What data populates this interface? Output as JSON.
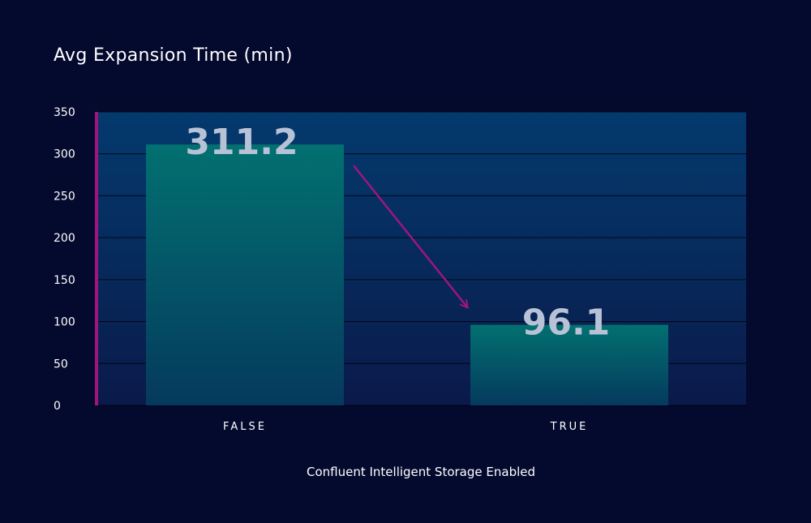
{
  "chart_data": {
    "type": "bar",
    "title": "Avg Expansion Time (min)",
    "xlabel": "Confluent Intelligent Storage Enabled",
    "ylabel": "",
    "categories": [
      "FALSE",
      "TRUE"
    ],
    "values": [
      311.2,
      96.1
    ],
    "data_labels": [
      "311.2",
      "96.1"
    ],
    "ylim": [
      0,
      350
    ],
    "yticks": [
      0,
      50,
      100,
      150,
      200,
      250,
      300,
      350
    ],
    "grid": true,
    "annotation": "arrow from FALSE bar down to TRUE bar",
    "colors": {
      "background": "#04092e",
      "plot_top": "#043a6e",
      "plot_bottom": "#0a1a4a",
      "bar_top": "#027070",
      "bar_bottom": "#053a5e",
      "accent": "#a0157d",
      "data_label": "#b8c2d6"
    }
  }
}
